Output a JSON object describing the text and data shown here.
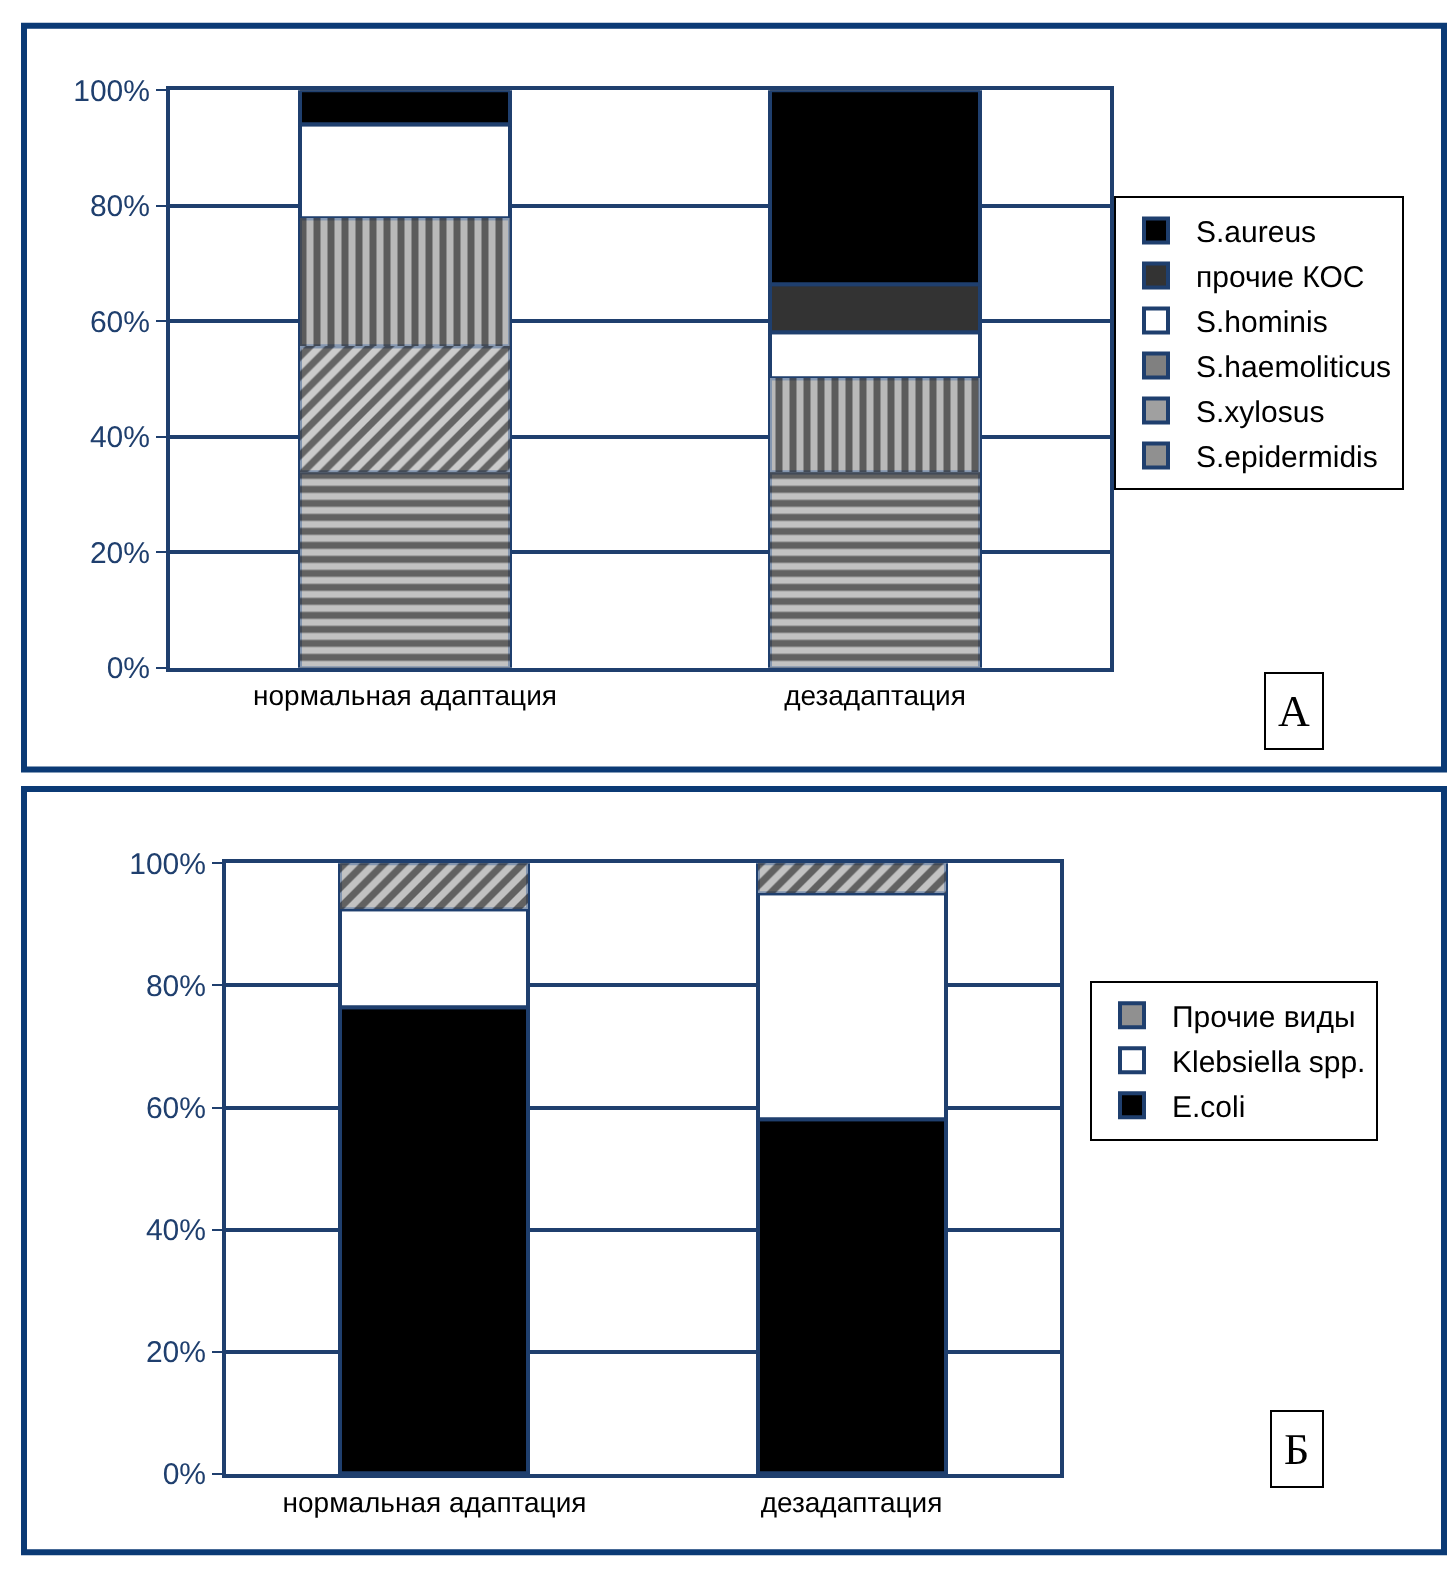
{
  "chart_data": [
    {
      "type": "bar",
      "stacked": true,
      "categories": [
        "нормальная адаптация",
        "дезадаптация"
      ],
      "series": [
        {
          "name": "S.epidermidis",
          "color": "#909090",
          "values": [
            34,
            34
          ]
        },
        {
          "name": "S.xylosus",
          "color": "#a0a0a0",
          "values": [
            21.5,
            0
          ]
        },
        {
          "name": "S.haemoliticus",
          "color": "#808080",
          "values": [
            22.5,
            16
          ]
        },
        {
          "name": "S.hominis",
          "color": "#ffffff",
          "values": [
            16,
            8
          ]
        },
        {
          "name": "прочие КОС",
          "color": "#333333",
          "values": [
            0,
            8.5
          ]
        },
        {
          "name": "S.aureus",
          "color": "#000000",
          "values": [
            6,
            33.5
          ]
        }
      ],
      "ylim": [
        0,
        100
      ],
      "yticks": [
        {
          "value": 0,
          "label": "0%"
        },
        {
          "value": 20,
          "label": "20%"
        },
        {
          "value": 40,
          "label": "40%"
        },
        {
          "value": 60,
          "label": "60%"
        },
        {
          "value": 80,
          "label": "80%"
        },
        {
          "value": 100,
          "label": "100%"
        }
      ],
      "grid": "y",
      "legend": "right",
      "annotations": [
        "А"
      ]
    },
    {
      "type": "bar",
      "stacked": true,
      "categories": [
        "нормальная адаптация",
        "дезадаптация"
      ],
      "series": [
        {
          "name": "E.coli",
          "color": "#000000",
          "values": [
            76.5,
            58
          ]
        },
        {
          "name": "Klebsiella spp.",
          "color": "#ffffff",
          "values": [
            16,
            37
          ]
        },
        {
          "name": "Прочие виды",
          "color": "#909090",
          "values": [
            7.5,
            5
          ]
        }
      ],
      "ylim": [
        0,
        100
      ],
      "yticks": [
        {
          "value": 0,
          "label": "0%"
        },
        {
          "value": 20,
          "label": "20%"
        },
        {
          "value": 40,
          "label": "40%"
        },
        {
          "value": 60,
          "label": "60%"
        },
        {
          "value": 80,
          "label": "80%"
        },
        {
          "value": 100,
          "label": "100%"
        }
      ],
      "grid": "y",
      "legend": "right",
      "annotations": [
        "Б"
      ]
    }
  ]
}
